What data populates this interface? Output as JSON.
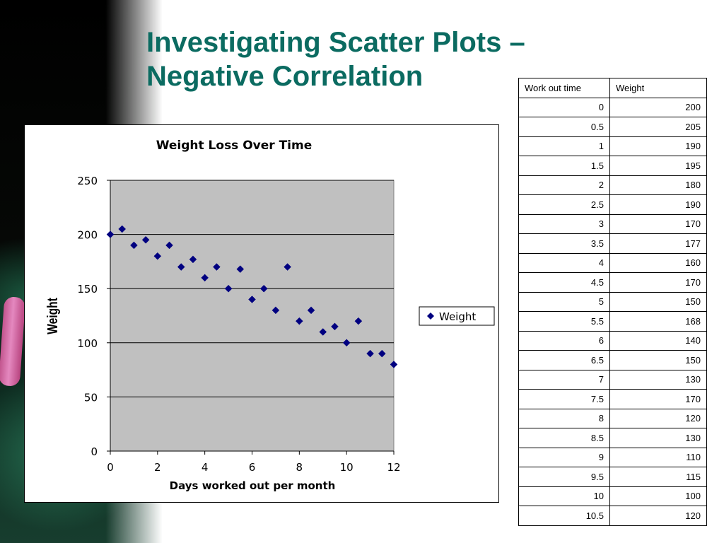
{
  "slide": {
    "title": "Investigating Scatter Plots – Negative Correlation"
  },
  "table": {
    "headers": [
      "Work out time",
      "Weight"
    ],
    "rows": [
      [
        "0",
        "200"
      ],
      [
        "0.5",
        "205"
      ],
      [
        "1",
        "190"
      ],
      [
        "1.5",
        "195"
      ],
      [
        "2",
        "180"
      ],
      [
        "2.5",
        "190"
      ],
      [
        "3",
        "170"
      ],
      [
        "3.5",
        "177"
      ],
      [
        "4",
        "160"
      ],
      [
        "4.5",
        "170"
      ],
      [
        "5",
        "150"
      ],
      [
        "5.5",
        "168"
      ],
      [
        "6",
        "140"
      ],
      [
        "6.5",
        "150"
      ],
      [
        "7",
        "130"
      ],
      [
        "7.5",
        "170"
      ],
      [
        "8",
        "120"
      ],
      [
        "8.5",
        "130"
      ],
      [
        "9",
        "110"
      ],
      [
        "9.5",
        "115"
      ],
      [
        "10",
        "100"
      ],
      [
        "10.5",
        "120"
      ]
    ]
  },
  "chart_data": {
    "type": "scatter",
    "title": "Weight Loss Over Time",
    "xlabel": "Days worked out per month",
    "ylabel": "Weight",
    "xlim": [
      0,
      12
    ],
    "ylim": [
      0,
      250
    ],
    "xticks": [
      0,
      2,
      4,
      6,
      8,
      10,
      12
    ],
    "yticks": [
      0,
      50,
      100,
      150,
      200,
      250
    ],
    "grid": true,
    "legend_position": "right",
    "plot_background": "#c0c0c0",
    "marker_color": "#000080",
    "series": [
      {
        "name": "Weight",
        "x": [
          0,
          0.5,
          1,
          1.5,
          2,
          2.5,
          3,
          3.5,
          4,
          4.5,
          5,
          5.5,
          6,
          6.5,
          7,
          7.5,
          8,
          8.5,
          9,
          9.5,
          10,
          10.5,
          11,
          11.5,
          12
        ],
        "y": [
          200,
          205,
          190,
          195,
          180,
          190,
          170,
          177,
          160,
          170,
          150,
          168,
          140,
          150,
          130,
          170,
          120,
          130,
          110,
          115,
          100,
          120,
          90,
          90,
          80
        ]
      }
    ]
  }
}
